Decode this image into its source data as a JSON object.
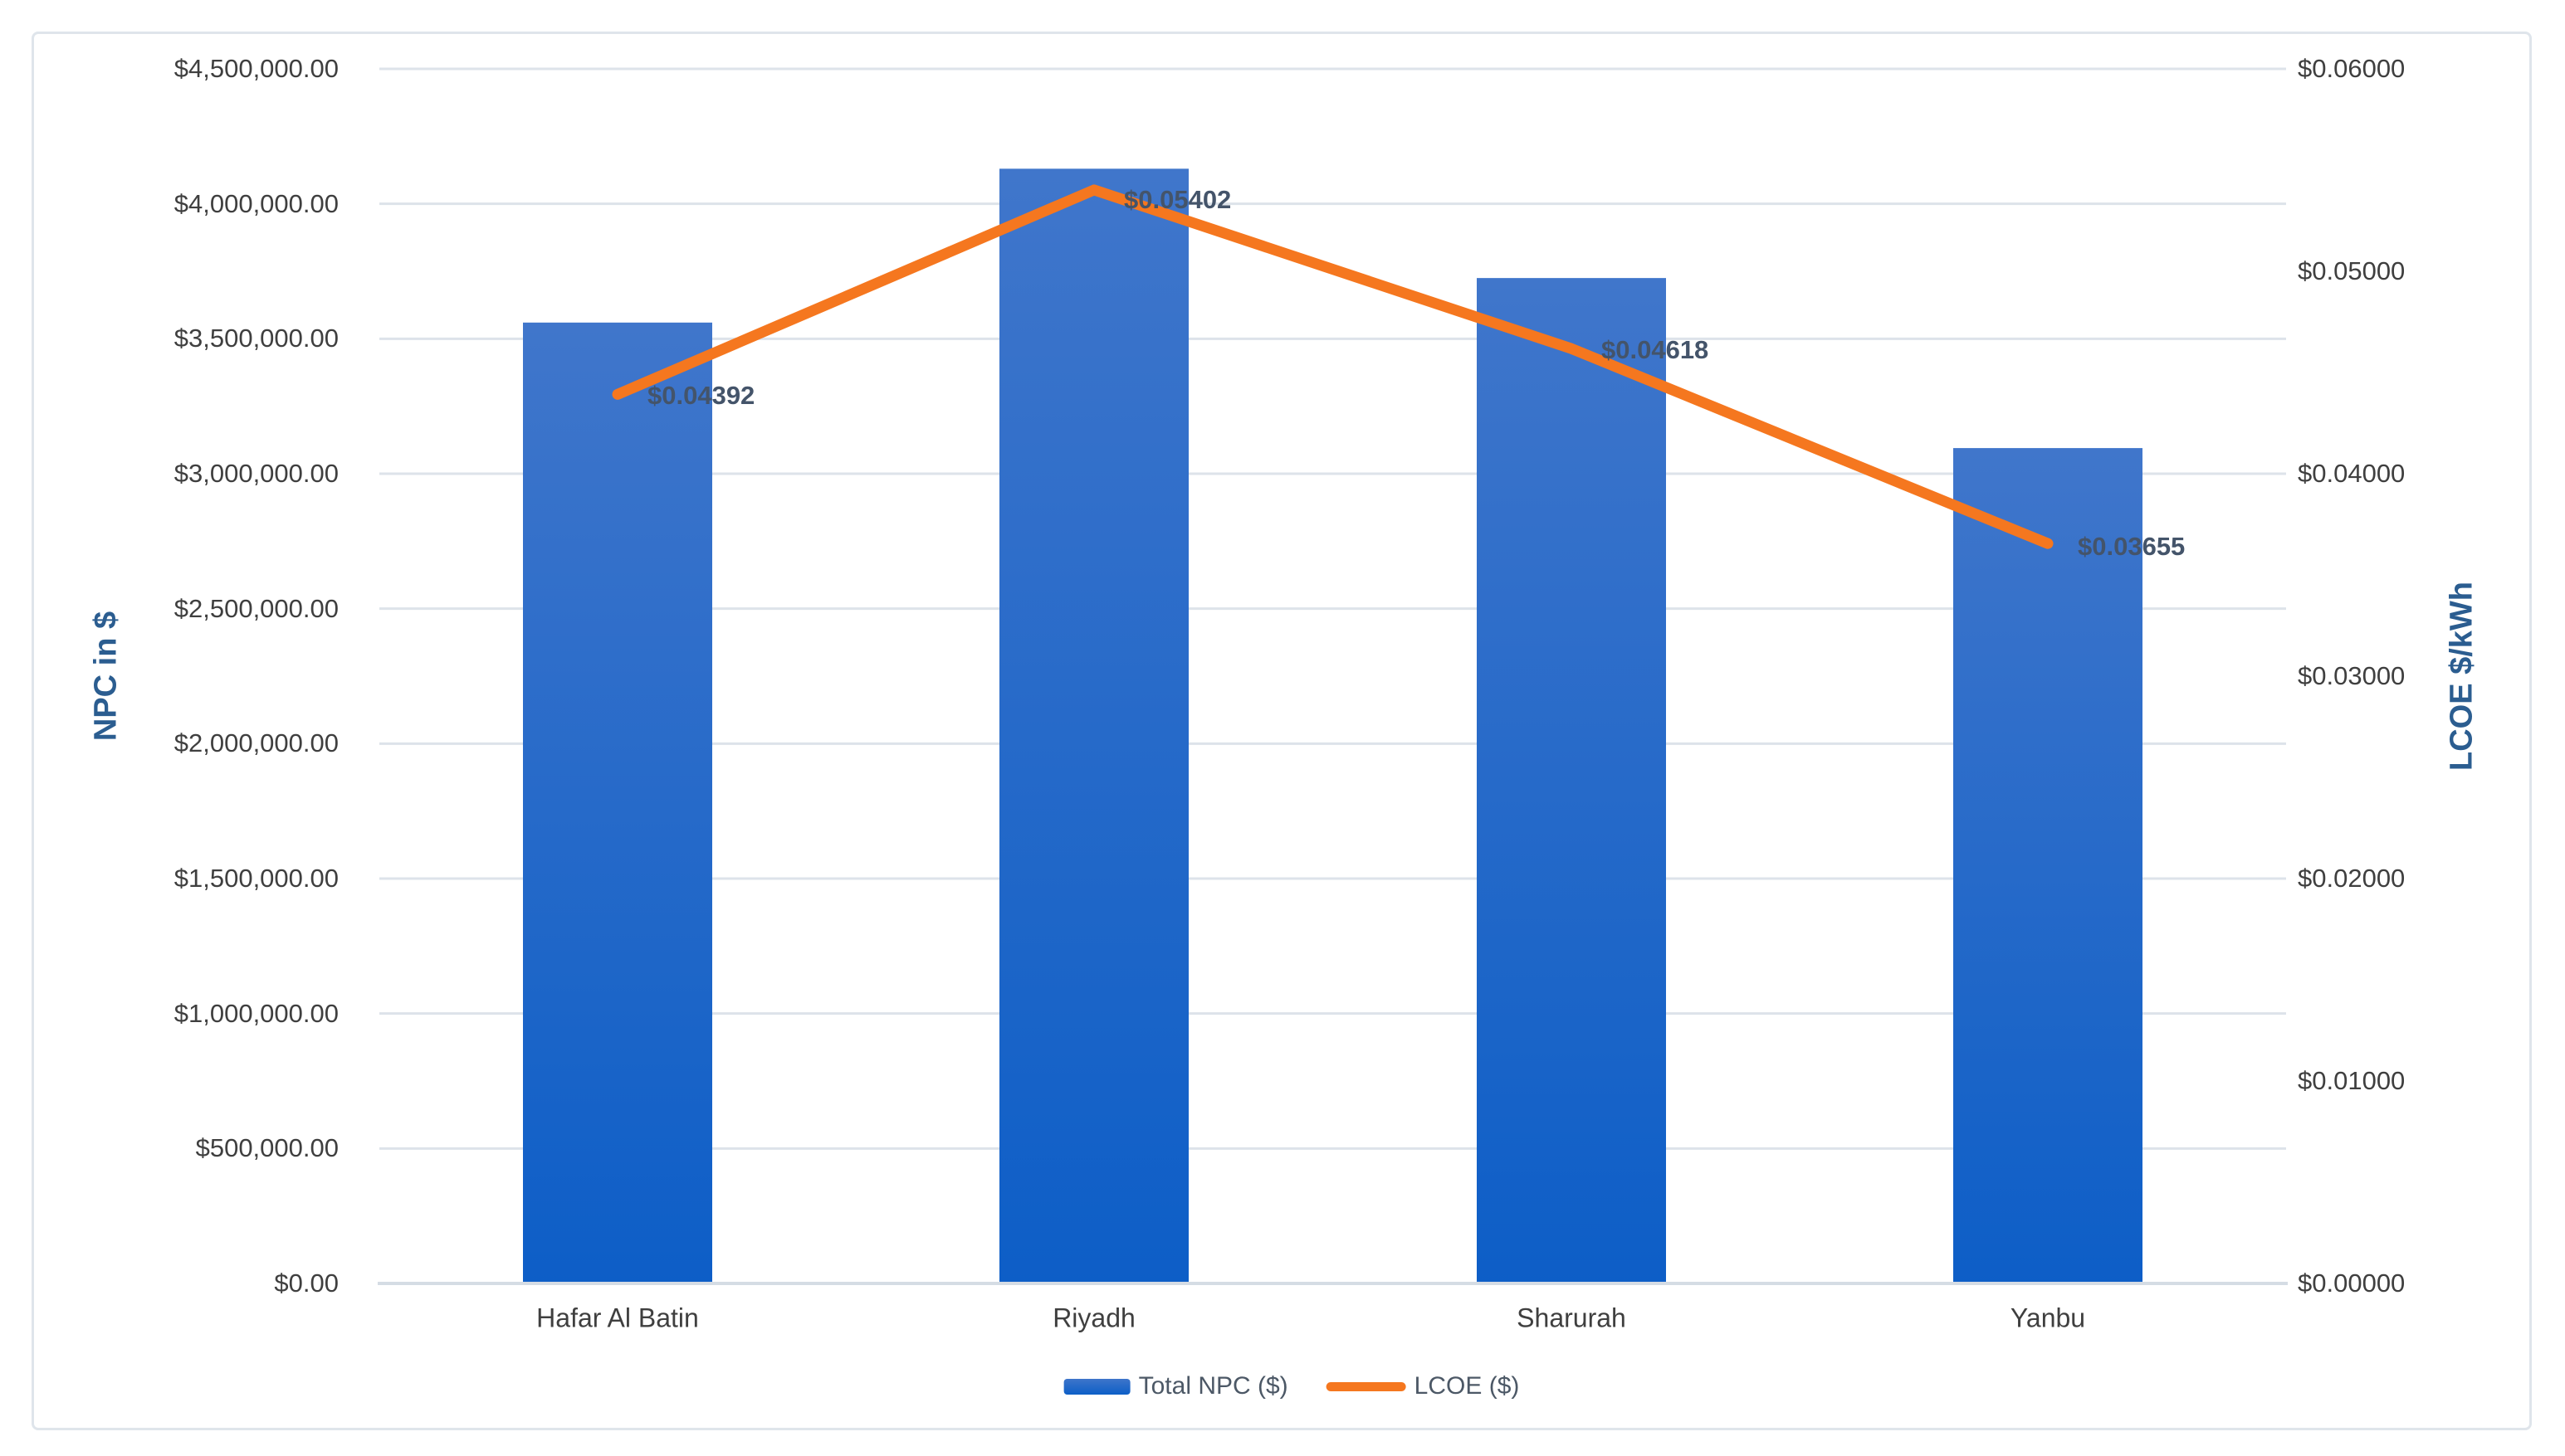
{
  "chart_data": {
    "type": "bar",
    "subtype": "combo-bar-line",
    "title": "",
    "categories": [
      "Hafar Al Batin",
      "Riyadh",
      "Sharurah",
      "Yanbu"
    ],
    "series": [
      {
        "name": "Total NPC ($)",
        "type": "bar",
        "axis": "left",
        "values": [
          3560000,
          4130000,
          3725000,
          3095000
        ]
      },
      {
        "name": "LCOE ($)",
        "type": "line",
        "axis": "right",
        "values": [
          0.04392,
          0.05402,
          0.04618,
          0.03655
        ],
        "point_labels": [
          "$0.04392",
          "$0.05402",
          "$0.04618",
          "$0.03655"
        ]
      }
    ],
    "left_axis": {
      "title": "NPC in $",
      "min": 0,
      "max": 4500000,
      "step": 500000,
      "tick_labels": [
        "$4,500,000.00",
        "$4,000,000.00",
        "$3,500,000.00",
        "$3,000,000.00",
        "$2,500,000.00",
        "$2,000,000.00",
        "$1,500,000.00",
        "$1,000,000.00",
        "$500,000.00",
        "$0.00"
      ]
    },
    "right_axis": {
      "title": "LCOE $/kWh",
      "min": 0,
      "max": 0.06,
      "step": 0.01,
      "tick_labels": [
        "$0.06000",
        "$0.05000",
        "$0.04000",
        "$0.03000",
        "$0.02000",
        "$0.01000",
        "$0.00000"
      ]
    },
    "legend": {
      "position": "bottom",
      "entries": [
        {
          "label": "Total NPC ($)",
          "swatch": "bar"
        },
        {
          "label": "LCOE ($)",
          "swatch": "line"
        }
      ]
    },
    "grid": true,
    "colors": {
      "bar_top": "#4076cb",
      "bar_bottom": "#0d5ec7",
      "line": "#f5771f",
      "gridline": "#dde3ea",
      "axis_line": "#d5dce4",
      "frame_border": "#dfe5eb",
      "tick_text": "#3f3f3f",
      "data_label_text": "#44546a",
      "axis_title_text": "#2b5d90",
      "legend_text": "#4c5866"
    }
  }
}
